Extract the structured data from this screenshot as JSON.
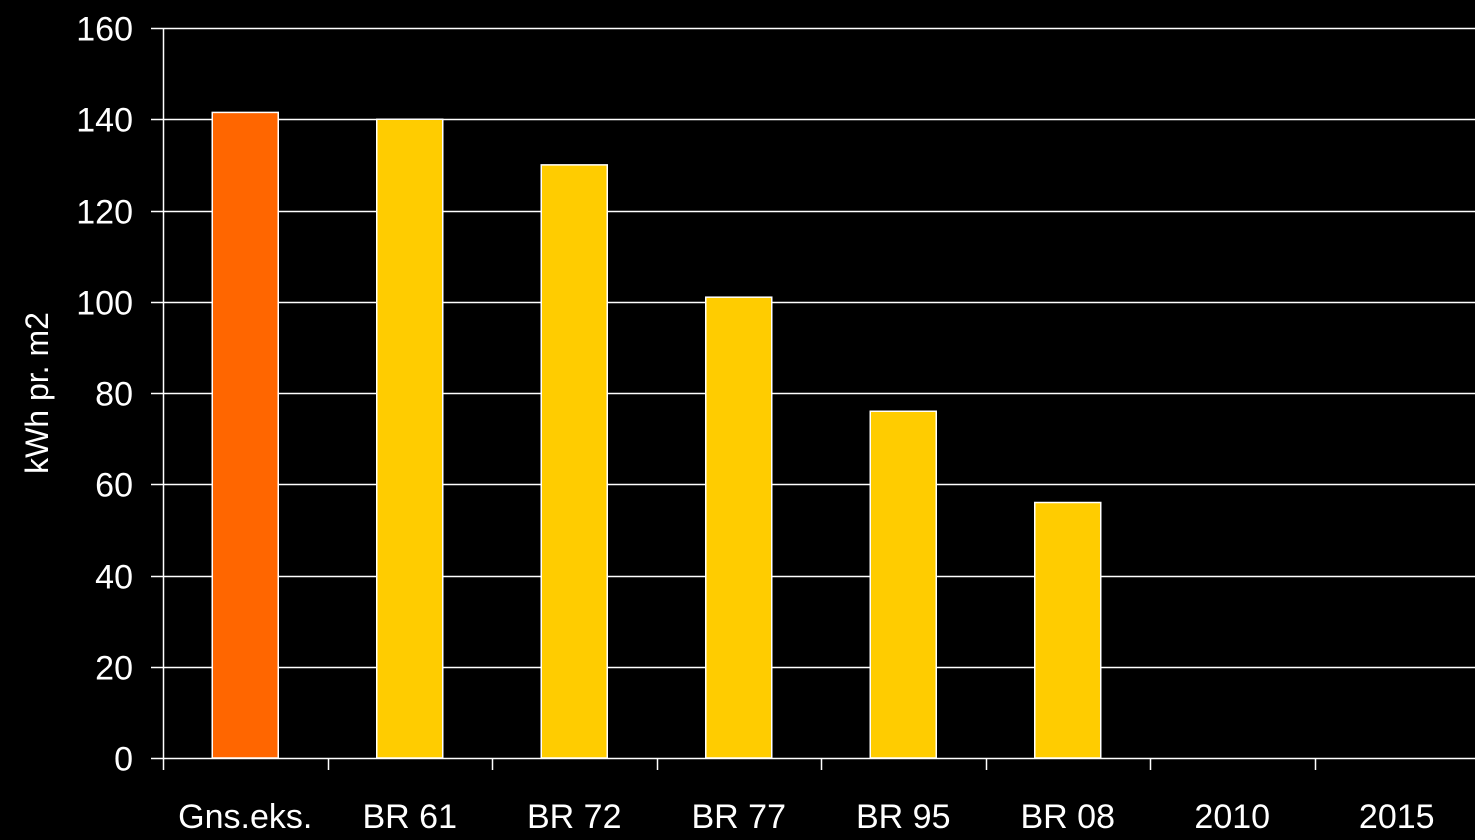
{
  "chart_data": {
    "type": "bar",
    "ylabel": "kWh pr. m2",
    "xlabel": "",
    "ylim": [
      0,
      160
    ],
    "yticks": [
      0,
      20,
      40,
      60,
      80,
      100,
      120,
      140,
      160
    ],
    "ytick_labels": [
      "0",
      "20",
      "40",
      "60",
      "80",
      "100",
      "120",
      "140",
      "160"
    ],
    "grid": true,
    "categories": [
      "Gns.eks.",
      "BR 61",
      "BR 72",
      "BR 77",
      "BR 95",
      "BR 08",
      "2010",
      "2015"
    ],
    "values": [
      141.5,
      140,
      130,
      101,
      76,
      56,
      null,
      null
    ],
    "colors": [
      "#FF6600",
      "#FFCC00",
      "#FFCC00",
      "#FFCC00",
      "#FFCC00",
      "#FFCC00",
      "#FFCC00",
      "#FFCC00"
    ],
    "background": "#000000",
    "axis_color": "#FFFFFF",
    "grid_color": "#FFFFFF"
  }
}
